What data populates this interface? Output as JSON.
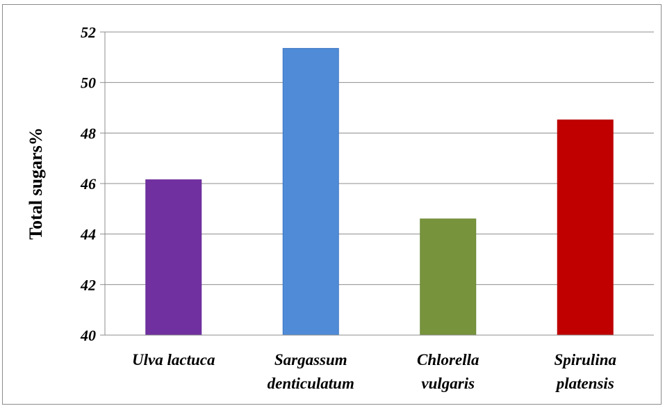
{
  "chart_data": {
    "type": "bar",
    "categories": [
      [
        "Ulva lactuca"
      ],
      [
        "Sargassum",
        "denticulatum"
      ],
      [
        "Chlorella",
        "vulgaris"
      ],
      [
        "Spirulina",
        "platensis"
      ]
    ],
    "values": [
      46.15,
      51.35,
      44.6,
      48.52
    ],
    "colors": [
      "#7030a0",
      "#4f8bd6",
      "#77933c",
      "#c00000"
    ],
    "bar_borders": [
      "#6a2d99",
      "#3a75c4",
      "#6e8a36",
      "#b80000"
    ],
    "ylabel": "Total sugars%",
    "xlabel": "",
    "title": "",
    "ylim": [
      40,
      52
    ],
    "yticks": [
      40,
      42,
      44,
      46,
      48,
      50,
      52
    ],
    "grid": true,
    "legend": "none"
  }
}
